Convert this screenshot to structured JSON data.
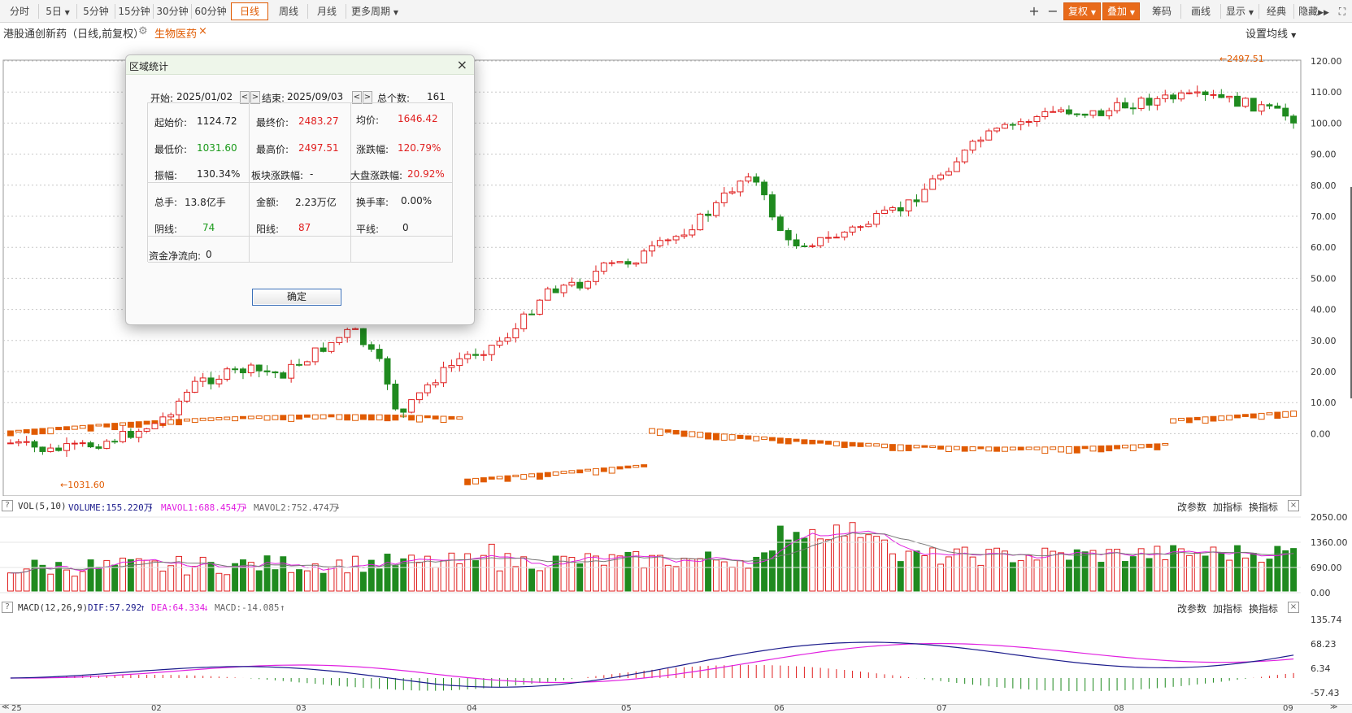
{
  "toolbar": {
    "periods": [
      "分时",
      "5日",
      "5分钟",
      "15分钟",
      "30分钟",
      "60分钟",
      "日线",
      "周线",
      "月线",
      "更多周期"
    ],
    "active_period": "日线",
    "right": {
      "plus": "+",
      "minus": "−",
      "adjust": "复权",
      "overlay": "叠加",
      "chips": "筹码",
      "draw": "画线",
      "display": "显示",
      "classic": "经典",
      "hide": "隐藏"
    }
  },
  "title": {
    "stock": "港股通创新药（日线,前复权）",
    "sector": "生物医药",
    "ma_setting": "设置均线"
  },
  "main_chart": {
    "price_labels": [
      "120.00",
      "110.00",
      "100.00",
      "90.00",
      "80.00",
      "70.00",
      "60.00",
      "50.00",
      "40.00",
      "30.00",
      "20.00",
      "10.00",
      "0.00"
    ],
    "high_marker": "←2497.51",
    "low_marker": "←1031.60"
  },
  "volume_panel": {
    "help": "?",
    "name": "VOL(5,10)",
    "volume": "VOLUME:155.220万",
    "mavol1": "MAVOL1:688.454万",
    "mavol2": "MAVOL2:752.474万",
    "actions": [
      "改参数",
      "加指标",
      "换指标"
    ],
    "close": "×",
    "labels": [
      "2050.00",
      "1360.00",
      "690.00",
      "0.00"
    ]
  },
  "macd_panel": {
    "help": "?",
    "name": "MACD(12,26,9)",
    "dif": "DIF:57.292",
    "dea": "DEA:64.334",
    "macd": "MACD:-14.085",
    "actions": [
      "改参数",
      "加指标",
      "换指标"
    ],
    "close": "×",
    "labels": [
      "135.74",
      "68.23",
      "6.34",
      "-57.43"
    ]
  },
  "time_axis": {
    "start": "25",
    "months": [
      "02",
      "03",
      "04",
      "05",
      "06",
      "07",
      "08",
      "09"
    ]
  },
  "dialog": {
    "title": "区域统计",
    "close": "×",
    "start_label": "开始:",
    "start_date": "2025/01/02",
    "end_label": "结束:",
    "end_date": "2025/09/03",
    "total_label": "总个数:",
    "total": "161",
    "cells": {
      "open_label": "起始价:",
      "open": "1124.72",
      "close_label": "最终价:",
      "close_price": "2483.27",
      "avg_label": "均价:",
      "avg": "1646.42",
      "low_label": "最低价:",
      "low": "1031.60",
      "high_label": "最高价:",
      "high": "2497.51",
      "chg_label": "涨跌幅:",
      "chg": "120.79%",
      "amp_label": "振幅:",
      "amp": "130.34%",
      "sector_chg_label": "板块涨跌幅:",
      "sector_chg": "-",
      "market_chg_label": "大盘涨跌幅:",
      "market_chg": "20.92%",
      "vol_label": "总手:",
      "vol": "13.8亿手",
      "amount_label": "金额:",
      "amount": "2.23万亿",
      "turnover_label": "换手率:",
      "turnover": "0.00%",
      "down_label": "阴线:",
      "down": "74",
      "up_label": "阳线:",
      "up": "87",
      "flat_label": "平线:",
      "flat": "0",
      "flow_label": "资金净流向:",
      "flow": "0"
    },
    "ok": "确定"
  },
  "colors": {
    "up": "#e02020",
    "down": "#1f8a1f",
    "overlay": "#e05a00",
    "dif": "#1c1c8c",
    "dea": "#e020e0",
    "grid": "#c8c8c8"
  }
}
